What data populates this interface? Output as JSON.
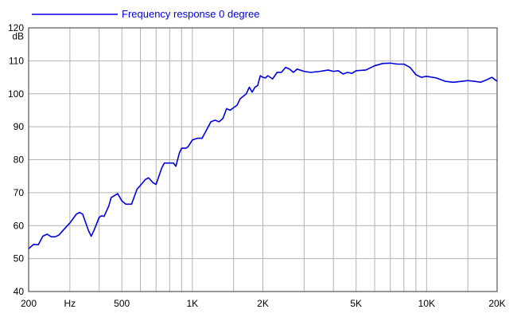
{
  "chart_data": {
    "type": "line",
    "title": "",
    "xlabel": "",
    "ylabel": "",
    "x_scale": "log",
    "xlim": [
      200,
      20000
    ],
    "ylim": [
      40,
      120
    ],
    "grid": true,
    "legend_position": "top-left",
    "x_ticks": [
      {
        "value": 200,
        "label": "200"
      },
      {
        "value": 300,
        "label": "Hz"
      },
      {
        "value": 500,
        "label": "500"
      },
      {
        "value": 1000,
        "label": "1K"
      },
      {
        "value": 2000,
        "label": "2K"
      },
      {
        "value": 5000,
        "label": "5K"
      },
      {
        "value": 10000,
        "label": "10K"
      },
      {
        "value": 20000,
        "label": "20K"
      }
    ],
    "x_gridlines": [
      300,
      400,
      500,
      600,
      700,
      800,
      900,
      1000,
      1500,
      2000,
      3000,
      4000,
      5000,
      6000,
      7000,
      8000,
      9000,
      10000,
      15000
    ],
    "y_ticks": [
      {
        "value": 120,
        "label": "120"
      },
      {
        "value": 110,
        "label": "110"
      },
      {
        "value": 100,
        "label": "100"
      },
      {
        "value": 90,
        "label": "90"
      },
      {
        "value": 80,
        "label": "80"
      },
      {
        "value": 70,
        "label": "70"
      },
      {
        "value": 60,
        "label": "60"
      },
      {
        "value": 50,
        "label": "50"
      },
      {
        "value": 40,
        "label": "40"
      }
    ],
    "y_unit_label": "dB",
    "series": [
      {
        "name": "Frequency response 0 degree",
        "color": "#0000dd",
        "x": [
          200,
          210,
          220,
          230,
          240,
          250,
          260,
          270,
          280,
          300,
          320,
          330,
          340,
          350,
          360,
          370,
          380,
          400,
          410,
          420,
          440,
          450,
          480,
          500,
          520,
          550,
          580,
          600,
          630,
          650,
          680,
          700,
          740,
          760,
          800,
          830,
          850,
          880,
          900,
          940,
          960,
          1000,
          1050,
          1100,
          1200,
          1250,
          1300,
          1350,
          1400,
          1450,
          1500,
          1550,
          1600,
          1700,
          1750,
          1800,
          1850,
          1900,
          1950,
          2000,
          2050,
          2100,
          2200,
          2300,
          2400,
          2500,
          2600,
          2700,
          2800,
          3000,
          3200,
          3500,
          3800,
          4000,
          4200,
          4400,
          4600,
          4800,
          5000,
          5500,
          6000,
          6500,
          7000,
          7500,
          8000,
          8500,
          9000,
          9500,
          10000,
          11000,
          12000,
          13000,
          15000,
          16000,
          17000,
          18000,
          19000,
          20000
        ],
        "values": [
          53.0,
          54.3,
          54.2,
          56.8,
          57.4,
          56.6,
          56.6,
          57.2,
          58.5,
          60.8,
          63.5,
          64.0,
          63.5,
          61.0,
          58.5,
          56.8,
          58.5,
          62.5,
          63.0,
          62.8,
          66.0,
          68.5,
          69.7,
          67.5,
          66.5,
          66.5,
          71.0,
          72.2,
          74.0,
          74.5,
          73.0,
          72.5,
          77.5,
          79.0,
          79.0,
          79.0,
          78.0,
          82.0,
          83.5,
          83.5,
          84.0,
          86.0,
          86.5,
          86.5,
          91.5,
          92.0,
          91.5,
          92.5,
          95.5,
          95.0,
          95.8,
          96.5,
          98.5,
          100.0,
          102.0,
          100.5,
          102.0,
          102.5,
          105.5,
          105.0,
          104.8,
          105.5,
          104.5,
          106.5,
          106.5,
          108.0,
          107.5,
          106.5,
          107.5,
          106.8,
          106.5,
          106.8,
          107.2,
          106.8,
          107.0,
          106.0,
          106.5,
          106.2,
          107.0,
          107.2,
          108.5,
          109.2,
          109.3,
          109.0,
          109.0,
          108.0,
          105.8,
          105.0,
          105.3,
          104.8,
          103.8,
          103.5,
          104.0,
          103.8,
          103.5,
          104.2,
          105.0,
          103.8
        ]
      }
    ]
  }
}
